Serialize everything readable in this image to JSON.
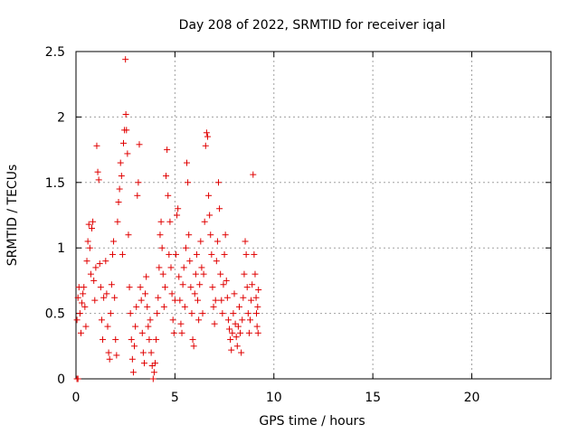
{
  "chart_data": {
    "type": "scatter",
    "title": "Day 208 of 2022, SRMTID for receiver iqal",
    "xlabel": "GPS time / hours",
    "ylabel": "SRMTID / TECUs",
    "xlim": [
      0,
      24
    ],
    "ylim": [
      0,
      2.5
    ],
    "xticks": [
      0,
      5,
      10,
      15,
      20
    ],
    "xtick_labels": [
      "0",
      "5",
      "10",
      "15",
      "20"
    ],
    "yticks": [
      0,
      0.5,
      1,
      1.5,
      2,
      2.5
    ],
    "ytick_labels": [
      "0",
      "0.5",
      "1",
      "1.5",
      "2",
      "2.5"
    ],
    "grid": true,
    "marker": "+",
    "color": "#e00000",
    "series": [
      {
        "name": "SRMTID",
        "points": [
          [
            0.05,
            0.0
          ],
          [
            0.1,
            0.0
          ],
          [
            0.05,
            0.45
          ],
          [
            0.1,
            0.62
          ],
          [
            0.15,
            0.7
          ],
          [
            0.2,
            0.5
          ],
          [
            0.25,
            0.35
          ],
          [
            0.3,
            0.58
          ],
          [
            0.35,
            0.65
          ],
          [
            0.4,
            0.7
          ],
          [
            0.45,
            0.55
          ],
          [
            0.5,
            0.4
          ],
          [
            0.55,
            0.9
          ],
          [
            0.6,
            1.05
          ],
          [
            0.65,
            1.18
          ],
          [
            0.7,
            1.0
          ],
          [
            0.75,
            0.8
          ],
          [
            0.8,
            1.15
          ],
          [
            0.85,
            1.2
          ],
          [
            0.9,
            0.75
          ],
          [
            0.95,
            0.6
          ],
          [
            1.0,
            0.85
          ],
          [
            1.05,
            1.78
          ],
          [
            1.1,
            1.58
          ],
          [
            1.15,
            1.52
          ],
          [
            1.2,
            0.88
          ],
          [
            1.25,
            0.7
          ],
          [
            1.3,
            0.45
          ],
          [
            1.35,
            0.3
          ],
          [
            1.4,
            0.62
          ],
          [
            1.5,
            0.9
          ],
          [
            1.55,
            0.65
          ],
          [
            1.6,
            0.4
          ],
          [
            1.65,
            0.2
          ],
          [
            1.7,
            0.15
          ],
          [
            1.75,
            0.5
          ],
          [
            1.8,
            0.72
          ],
          [
            1.85,
            0.95
          ],
          [
            1.9,
            1.05
          ],
          [
            1.95,
            0.62
          ],
          [
            2.0,
            0.3
          ],
          [
            2.05,
            0.18
          ],
          [
            2.1,
            1.2
          ],
          [
            2.15,
            1.35
          ],
          [
            2.2,
            1.45
          ],
          [
            2.25,
            1.65
          ],
          [
            2.3,
            1.55
          ],
          [
            2.35,
            0.95
          ],
          [
            2.4,
            1.8
          ],
          [
            2.45,
            1.9
          ],
          [
            2.5,
            2.44
          ],
          [
            2.52,
            2.02
          ],
          [
            2.55,
            1.9
          ],
          [
            2.6,
            1.72
          ],
          [
            2.65,
            1.1
          ],
          [
            2.7,
            0.7
          ],
          [
            2.75,
            0.5
          ],
          [
            2.8,
            0.3
          ],
          [
            2.85,
            0.15
          ],
          [
            2.9,
            0.05
          ],
          [
            2.95,
            0.25
          ],
          [
            3.0,
            0.4
          ],
          [
            3.05,
            0.55
          ],
          [
            3.1,
            1.4
          ],
          [
            3.15,
            1.5
          ],
          [
            3.2,
            1.79
          ],
          [
            3.25,
            0.7
          ],
          [
            3.3,
            0.6
          ],
          [
            3.35,
            0.35
          ],
          [
            3.4,
            0.2
          ],
          [
            3.45,
            0.12
          ],
          [
            3.5,
            0.65
          ],
          [
            3.55,
            0.78
          ],
          [
            3.6,
            0.55
          ],
          [
            3.65,
            0.4
          ],
          [
            3.7,
            0.3
          ],
          [
            3.75,
            0.45
          ],
          [
            3.8,
            0.2
          ],
          [
            3.85,
            0.1
          ],
          [
            3.9,
            0.0
          ],
          [
            3.95,
            0.05
          ],
          [
            4.0,
            0.12
          ],
          [
            4.05,
            0.3
          ],
          [
            4.1,
            0.5
          ],
          [
            4.15,
            0.62
          ],
          [
            4.2,
            0.85
          ],
          [
            4.25,
            1.1
          ],
          [
            4.3,
            1.2
          ],
          [
            4.35,
            1.0
          ],
          [
            4.4,
            0.8
          ],
          [
            4.45,
            0.55
          ],
          [
            4.5,
            0.7
          ],
          [
            4.55,
            1.55
          ],
          [
            4.6,
            1.75
          ],
          [
            4.65,
            1.4
          ],
          [
            4.7,
            0.95
          ],
          [
            4.75,
            1.2
          ],
          [
            4.8,
            0.85
          ],
          [
            4.85,
            0.65
          ],
          [
            4.9,
            0.45
          ],
          [
            4.95,
            0.35
          ],
          [
            5.0,
            0.6
          ],
          [
            5.05,
            0.95
          ],
          [
            5.1,
            1.25
          ],
          [
            5.15,
            1.3
          ],
          [
            5.2,
            0.78
          ],
          [
            5.25,
            0.6
          ],
          [
            5.3,
            0.42
          ],
          [
            5.35,
            0.35
          ],
          [
            5.4,
            0.72
          ],
          [
            5.45,
            0.85
          ],
          [
            5.5,
            0.55
          ],
          [
            5.55,
            1.0
          ],
          [
            5.6,
            1.65
          ],
          [
            5.65,
            1.5
          ],
          [
            5.7,
            1.1
          ],
          [
            5.75,
            0.9
          ],
          [
            5.8,
            0.7
          ],
          [
            5.85,
            0.5
          ],
          [
            5.9,
            0.3
          ],
          [
            5.95,
            0.25
          ],
          [
            6.0,
            0.65
          ],
          [
            6.05,
            0.8
          ],
          [
            6.1,
            0.95
          ],
          [
            6.15,
            0.6
          ],
          [
            6.2,
            0.45
          ],
          [
            6.25,
            0.72
          ],
          [
            6.3,
            1.05
          ],
          [
            6.35,
            0.85
          ],
          [
            6.4,
            0.5
          ],
          [
            6.45,
            0.8
          ],
          [
            6.5,
            1.2
          ],
          [
            6.55,
            1.78
          ],
          [
            6.6,
            1.88
          ],
          [
            6.65,
            1.85
          ],
          [
            6.7,
            1.4
          ],
          [
            6.75,
            1.25
          ],
          [
            6.8,
            1.1
          ],
          [
            6.85,
            0.95
          ],
          [
            6.9,
            0.7
          ],
          [
            6.95,
            0.55
          ],
          [
            7.0,
            0.42
          ],
          [
            7.05,
            0.6
          ],
          [
            7.1,
            0.9
          ],
          [
            7.15,
            1.05
          ],
          [
            7.2,
            1.5
          ],
          [
            7.25,
            1.3
          ],
          [
            7.3,
            0.8
          ],
          [
            7.35,
            0.6
          ],
          [
            7.4,
            0.5
          ],
          [
            7.45,
            0.72
          ],
          [
            7.5,
            0.95
          ],
          [
            7.55,
            1.1
          ],
          [
            7.6,
            0.75
          ],
          [
            7.65,
            0.62
          ],
          [
            7.7,
            0.45
          ],
          [
            7.75,
            0.38
          ],
          [
            7.8,
            0.3
          ],
          [
            7.85,
            0.22
          ],
          [
            7.9,
            0.35
          ],
          [
            7.95,
            0.5
          ],
          [
            8.0,
            0.65
          ],
          [
            8.05,
            0.42
          ],
          [
            8.1,
            0.32
          ],
          [
            8.15,
            0.25
          ],
          [
            8.2,
            0.4
          ],
          [
            8.25,
            0.55
          ],
          [
            8.3,
            0.35
          ],
          [
            8.35,
            0.2
          ],
          [
            8.4,
            0.45
          ],
          [
            8.45,
            0.62
          ],
          [
            8.5,
            0.8
          ],
          [
            8.55,
            1.05
          ],
          [
            8.6,
            0.95
          ],
          [
            8.65,
            0.7
          ],
          [
            8.7,
            0.5
          ],
          [
            8.75,
            0.35
          ],
          [
            8.8,
            0.45
          ],
          [
            8.85,
            0.6
          ],
          [
            8.9,
            0.72
          ],
          [
            8.95,
            1.56
          ],
          [
            9.0,
            0.95
          ],
          [
            9.05,
            0.8
          ],
          [
            9.1,
            0.62
          ],
          [
            9.12,
            0.5
          ],
          [
            9.15,
            0.4
          ],
          [
            9.18,
            0.55
          ],
          [
            9.2,
            0.35
          ],
          [
            9.22,
            0.68
          ]
        ]
      }
    ]
  }
}
